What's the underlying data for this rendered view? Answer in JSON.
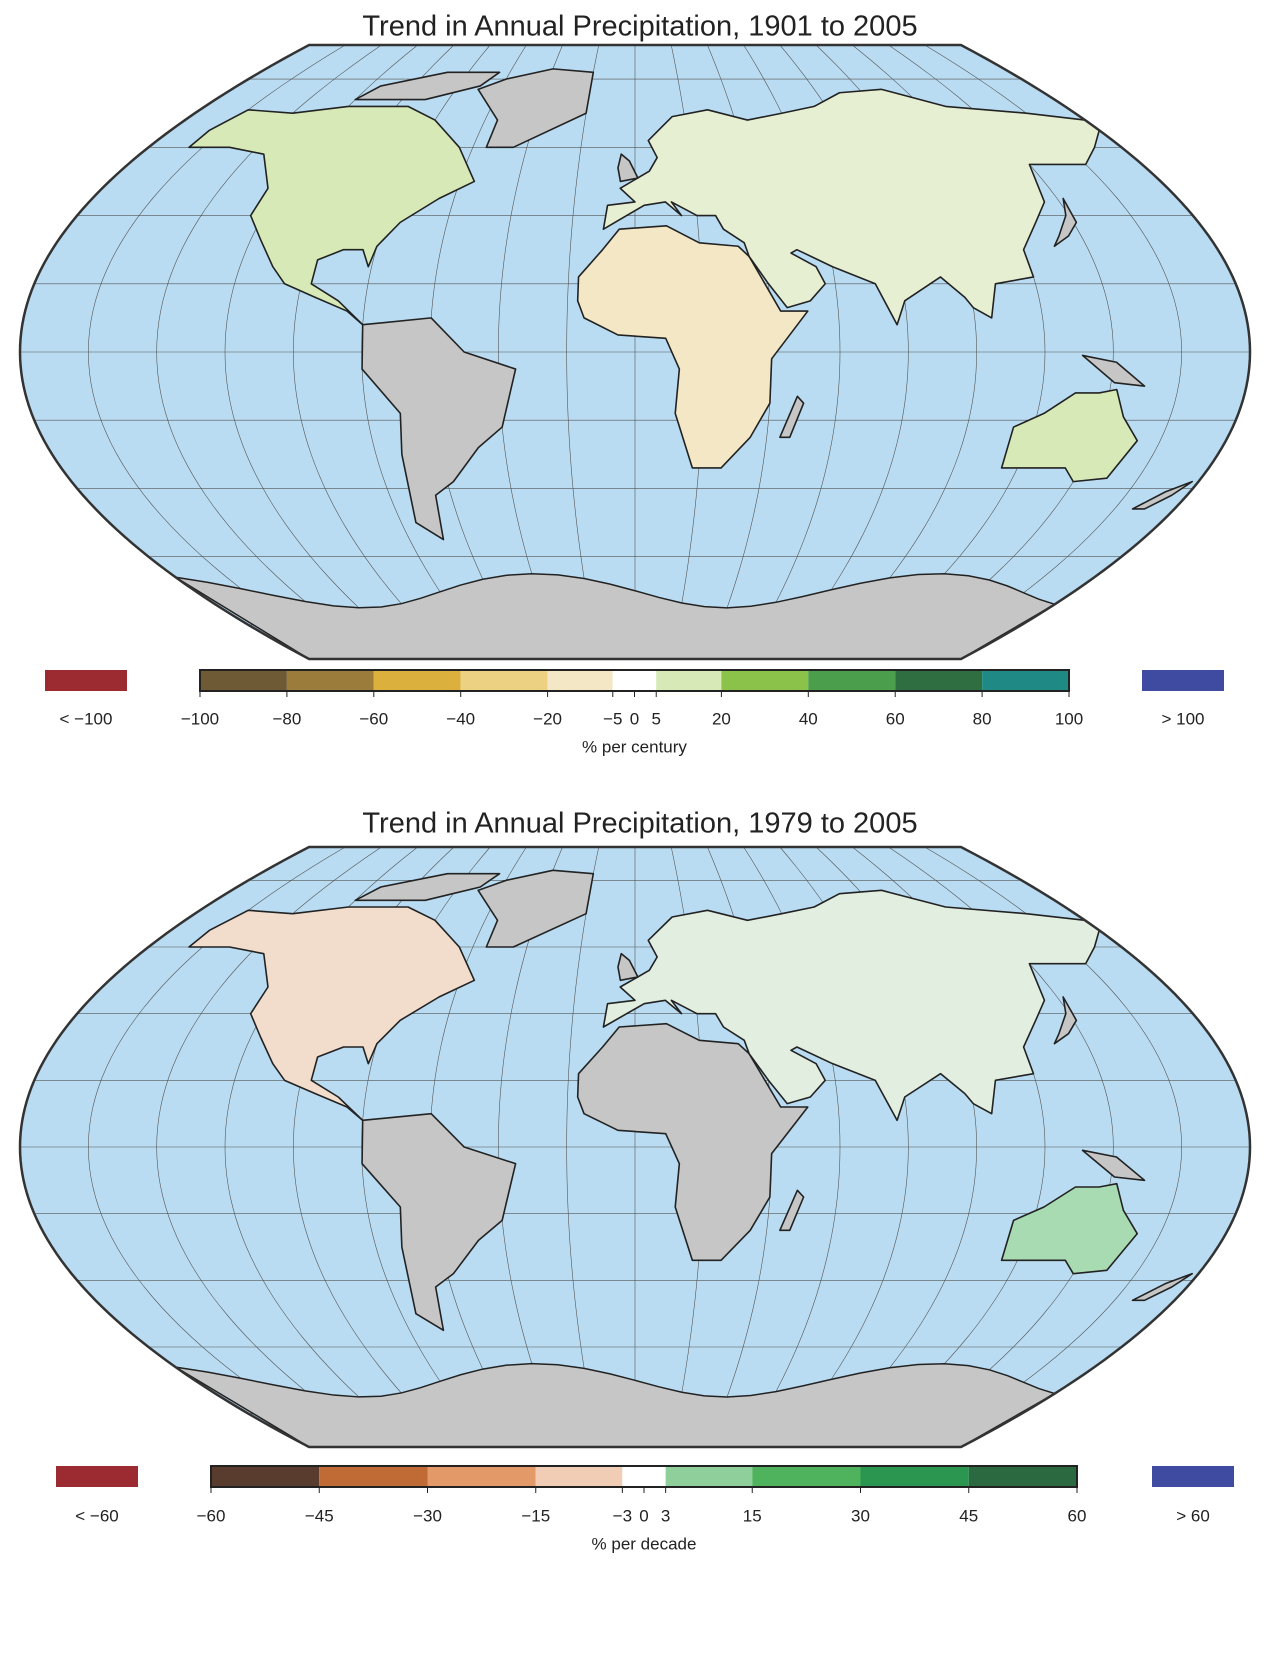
{
  "maps": [
    {
      "title": "Trend in Annual Precipitation, 1901 to 2005",
      "colorbar": {
        "xlim": [
          -100,
          100
        ],
        "bounds": [
          -100,
          -80,
          -60,
          -40,
          -20,
          -5,
          5,
          20,
          40,
          60,
          80,
          100
        ],
        "colors": [
          "#6e5a35",
          "#9c7c3a",
          "#dcb03c",
          "#ecd182",
          "#f4e7c6",
          "#ffffff",
          "#d6e9b6",
          "#8bc34a",
          "#4a9e4c",
          "#2f6e40",
          "#1f8a85"
        ],
        "ticks": [
          {
            "value": -100,
            "label": "−100"
          },
          {
            "value": -80,
            "label": "−80"
          },
          {
            "value": -60,
            "label": "−60"
          },
          {
            "value": -40,
            "label": "−40"
          },
          {
            "value": -20,
            "label": "−20"
          },
          {
            "value": -5,
            "label": "−5"
          },
          0,
          5,
          20,
          40,
          60,
          80,
          100
        ],
        "label": "% per century",
        "under": {
          "label": "< −100",
          "color": "#9b2b30"
        },
        "over": {
          "label": "> 100",
          "color": "#3f4ba0"
        }
      }
    },
    {
      "title": "Trend in Annual Precipitation, 1979 to 2005",
      "colorbar": {
        "xlim": [
          -60,
          60
        ],
        "bounds": [
          -60,
          -45,
          -30,
          -15,
          -3,
          3,
          15,
          30,
          45,
          60
        ],
        "colors": [
          "#5a3c2e",
          "#c06a35",
          "#e39a68",
          "#f2cdb5",
          "#ffffff",
          "#8fcf9c",
          "#4fb35e",
          "#2a9650",
          "#2b6a40"
        ],
        "ticks": [
          {
            "value": -60,
            "label": "−60"
          },
          {
            "value": -45,
            "label": "−45"
          },
          {
            "value": -30,
            "label": "−30"
          },
          {
            "value": -15,
            "label": "−15"
          },
          {
            "value": -3,
            "label": "−3"
          },
          0,
          3,
          15,
          30,
          45,
          60
        ],
        "label": "% per decade",
        "under": {
          "label": "< −60",
          "color": "#9b2b30"
        },
        "over": {
          "label": "> 60",
          "color": "#3f4ba0"
        }
      }
    }
  ]
}
